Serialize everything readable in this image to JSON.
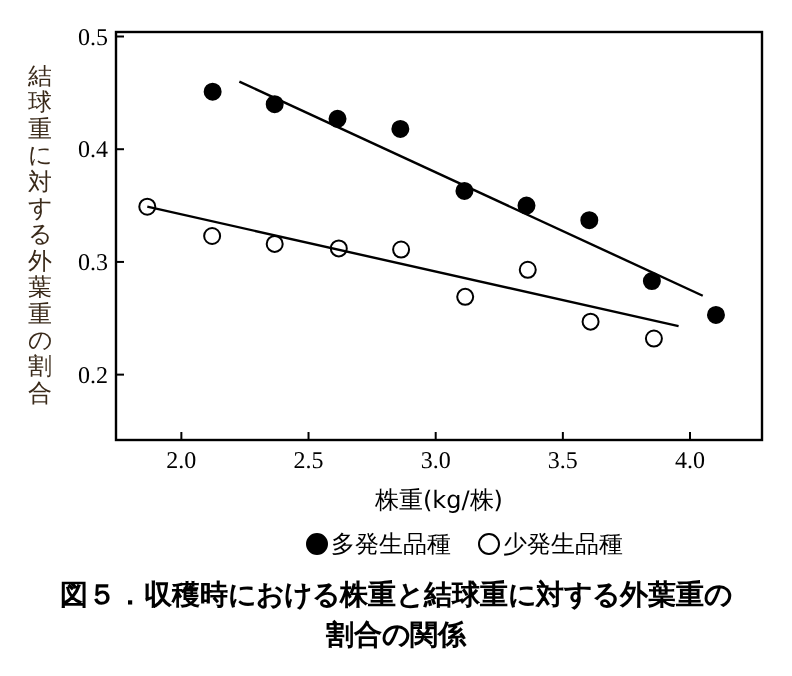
{
  "chart_data": {
    "type": "scatter",
    "title": "図５．収穫時における株重と結球重に対する外葉重の割合の関係",
    "xlabel": "株重(kg/株)",
    "ylabel": "結球重に対する外葉重の割合",
    "xlim": [
      1.743,
      4.283
    ],
    "ylim": [
      0.142,
      0.504
    ],
    "xticks": [
      {
        "value": 2,
        "label": "2.0"
      },
      2.5,
      {
        "value": 3,
        "label": "3.0"
      },
      3.5,
      {
        "value": 4,
        "label": "4.0"
      }
    ],
    "yticks": [
      0.2,
      0.3,
      0.4,
      0.5
    ],
    "grid": false,
    "legend": "bottom",
    "marker": "circle",
    "series": [
      {
        "name": "多発生品種",
        "color": "#000000",
        "x": [
          2.123,
          2.367,
          2.614,
          2.861,
          3.113,
          3.357,
          3.604,
          3.85,
          4.102
        ],
        "values": [
          0.451,
          0.44,
          0.427,
          0.418,
          0.363,
          0.35,
          0.337,
          0.283,
          0.253
        ]
      },
      {
        "name": "少発生品種",
        "color": "#ffffff",
        "x": [
          1.866,
          2.121,
          2.367,
          2.619,
          2.864,
          3.116,
          3.362,
          3.609,
          3.858
        ],
        "values": [
          0.349,
          0.323,
          0.316,
          0.312,
          0.311,
          0.269,
          0.293,
          0.247,
          0.232
        ]
      },
      {
        "type": "line",
        "marker": "none",
        "color": "#000000",
        "x": [
          2.228,
          4.05
        ],
        "values": [
          0.46,
          0.27
        ]
      },
      {
        "type": "line",
        "marker": "none",
        "color": "#000000",
        "x": [
          1.866,
          3.955
        ],
        "values": [
          0.349,
          0.243
        ]
      }
    ]
  }
}
